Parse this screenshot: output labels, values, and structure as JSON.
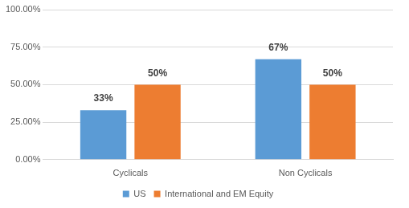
{
  "chart_data": {
    "type": "bar",
    "categories": [
      "Cyclicals",
      "Non Cyclicals"
    ],
    "series": [
      {
        "name": "US",
        "color": "#5b9bd5",
        "values": [
          33,
          67
        ],
        "value_labels": [
          "33%",
          "67%"
        ]
      },
      {
        "name": "International and EM Equity",
        "color": "#ed7d31",
        "values": [
          50,
          50
        ],
        "value_labels": [
          "50%",
          "50%"
        ]
      }
    ],
    "ylim": [
      0,
      100
    ],
    "yticks": [
      {
        "value": 0,
        "label": "0.00%"
      },
      {
        "value": 25,
        "label": "25.00%"
      },
      {
        "value": 50,
        "label": "50.00%"
      },
      {
        "value": 75,
        "label": "75.00%"
      },
      {
        "value": 100,
        "label": "100.00%"
      }
    ],
    "grid": true,
    "legend": "bottom",
    "data_labels": true
  }
}
